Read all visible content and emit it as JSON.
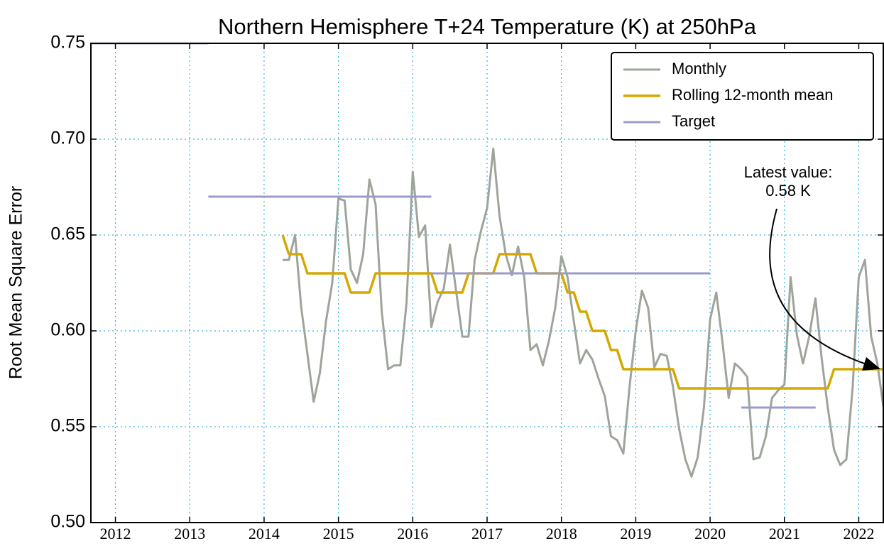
{
  "chart_data": {
    "type": "line",
    "title": "Northern Hemisphere T+24 Temperature (K) at 250hPa",
    "ylabel": "Root Mean Square Error",
    "xlim": [
      2011.67,
      2022.33
    ],
    "ylim": [
      0.5,
      0.75
    ],
    "xticks": [
      2012,
      2013,
      2014,
      2015,
      2016,
      2017,
      2018,
      2019,
      2020,
      2021,
      2022
    ],
    "yticks": [
      {
        "value": 0.5,
        "label": "0.50"
      },
      0.55,
      {
        "value": 0.6,
        "label": "0.60"
      },
      0.65,
      {
        "value": 0.7,
        "label": "0.70"
      },
      0.75
    ],
    "grid": true,
    "legend": "upper right",
    "annotation": [
      "Latest value:",
      "0.58 K"
    ],
    "x": [
      2014.25,
      2014.333,
      2014.417,
      2014.5,
      2014.583,
      2014.667,
      2014.75,
      2014.833,
      2014.917,
      2015,
      2015.083,
      2015.167,
      2015.25,
      2015.333,
      2015.417,
      2015.5,
      2015.583,
      2015.667,
      2015.75,
      2015.833,
      2015.917,
      2016,
      2016.083,
      2016.167,
      2016.25,
      2016.333,
      2016.417,
      2016.5,
      2016.583,
      2016.667,
      2016.75,
      2016.833,
      2016.917,
      2017,
      2017.083,
      2017.167,
      2017.25,
      2017.333,
      2017.417,
      2017.5,
      2017.583,
      2017.667,
      2017.75,
      2017.833,
      2017.917,
      2018,
      2018.083,
      2018.167,
      2018.25,
      2018.333,
      2018.417,
      2018.5,
      2018.583,
      2018.667,
      2018.75,
      2018.833,
      2018.917,
      2019,
      2019.083,
      2019.167,
      2019.25,
      2019.333,
      2019.417,
      2019.5,
      2019.583,
      2019.667,
      2019.75,
      2019.833,
      2019.917,
      2020,
      2020.083,
      2020.167,
      2020.25,
      2020.333,
      2020.417,
      2020.5,
      2020.583,
      2020.667,
      2020.75,
      2020.833,
      2020.917,
      2021,
      2021.083,
      2021.167,
      2021.25,
      2021.333,
      2021.417,
      2021.5,
      2021.583,
      2021.667,
      2021.75,
      2021.833,
      2021.917,
      2022,
      2022.083,
      2022.167,
      2022.25,
      2022.333
    ],
    "series": [
      {
        "name": "Monthly",
        "color": "#9ea49b",
        "width": 3,
        "values": [
          0.637,
          0.637,
          0.65,
          0.612,
          0.588,
          0.563,
          0.578,
          0.605,
          0.625,
          0.669,
          0.668,
          0.632,
          0.625,
          0.64,
          0.679,
          0.666,
          0.61,
          0.58,
          0.582,
          0.582,
          0.615,
          0.683,
          0.649,
          0.655,
          0.602,
          0.615,
          0.622,
          0.645,
          0.621,
          0.597,
          0.597,
          0.637,
          0.652,
          0.664,
          0.695,
          0.66,
          0.64,
          0.629,
          0.644,
          0.628,
          0.59,
          0.593,
          0.582,
          0.595,
          0.612,
          0.639,
          0.628,
          0.605,
          0.583,
          0.59,
          0.585,
          0.575,
          0.566,
          0.545,
          0.543,
          0.536,
          0.571,
          0.6,
          0.621,
          0.612,
          0.581,
          0.588,
          0.587,
          0.571,
          0.549,
          0.533,
          0.524,
          0.534,
          0.56,
          0.606,
          0.62,
          0.594,
          0.565,
          0.583,
          0.58,
          0.576,
          0.533,
          0.534,
          0.545,
          0.565,
          0.569,
          0.572,
          0.628,
          0.598,
          0.583,
          0.597,
          0.617,
          0.586,
          0.56,
          0.538,
          0.53,
          0.533,
          0.57,
          0.628,
          0.637,
          0.597,
          0.583,
          0.56
        ]
      },
      {
        "name": "Rolling 12-month mean",
        "color": "#d4a800",
        "width": 3.5,
        "values": [
          0.65,
          0.64,
          0.64,
          0.64,
          0.63,
          0.63,
          0.63,
          0.63,
          0.63,
          0.63,
          0.63,
          0.62,
          0.62,
          0.62,
          0.62,
          0.63,
          0.63,
          0.63,
          0.63,
          0.63,
          0.63,
          0.63,
          0.63,
          0.63,
          0.63,
          0.62,
          0.62,
          0.62,
          0.62,
          0.62,
          0.63,
          0.63,
          0.63,
          0.63,
          0.63,
          0.64,
          0.64,
          0.64,
          0.64,
          0.64,
          0.64,
          0.63,
          0.63,
          0.63,
          0.63,
          0.63,
          0.62,
          0.62,
          0.61,
          0.61,
          0.6,
          0.6,
          0.6,
          0.59,
          0.59,
          0.58,
          0.58,
          0.58,
          0.58,
          0.58,
          0.58,
          0.58,
          0.58,
          0.58,
          0.57,
          0.57,
          0.57,
          0.57,
          0.57,
          0.57,
          0.57,
          0.57,
          0.57,
          0.57,
          0.57,
          0.57,
          0.57,
          0.57,
          0.57,
          0.57,
          0.57,
          0.57,
          0.57,
          0.57,
          0.57,
          0.57,
          0.57,
          0.57,
          0.57,
          0.58,
          0.58,
          0.58,
          0.58,
          0.58,
          0.58,
          0.58,
          0.58,
          0.58
        ]
      },
      {
        "name": "Target",
        "color": "#9b9bcb",
        "width": 3,
        "x": [
          2011.67,
          2013.25,
          null,
          2013.25,
          2016.25,
          null,
          2016.25,
          2020.0,
          null,
          2020.42,
          2021.42
        ],
        "values": [
          0.75,
          0.75,
          null,
          0.67,
          0.67,
          null,
          0.63,
          0.63,
          null,
          0.56,
          0.56
        ]
      }
    ]
  }
}
